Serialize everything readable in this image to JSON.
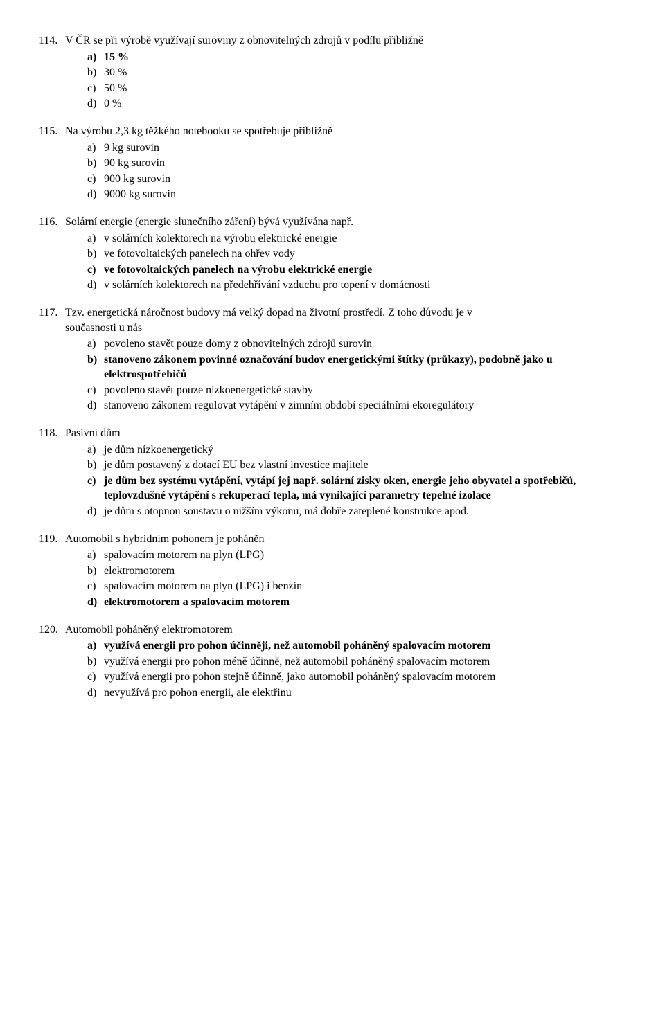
{
  "font_family": "Times New Roman",
  "base_fontsize_pt": 12,
  "text_color": "#000000",
  "background_color": "#ffffff",
  "questions": [
    {
      "number": "114.",
      "stem": "V ČR se při výrobě využívají suroviny z obnovitelných zdrojů v podílu přibližně",
      "extra_stem": "",
      "options": [
        {
          "letter": "a)",
          "text": "15 %",
          "bold": true
        },
        {
          "letter": "b)",
          "text": "30 %",
          "bold": false
        },
        {
          "letter": "c)",
          "text": "50 %",
          "bold": false
        },
        {
          "letter": "d)",
          "text": "0 %",
          "bold": false
        }
      ]
    },
    {
      "number": "115.",
      "stem": "Na výrobu 2,3 kg těžkého notebooku se spotřebuje přibližně",
      "extra_stem": "",
      "options": [
        {
          "letter": "a)",
          "text": "9 kg surovin",
          "bold": false
        },
        {
          "letter": "b)",
          "text": "90 kg surovin",
          "bold": false
        },
        {
          "letter": "c)",
          "text": "900 kg surovin",
          "bold": false
        },
        {
          "letter": "d)",
          "text": "9000 kg surovin",
          "bold": false
        }
      ]
    },
    {
      "number": "116.",
      "stem": "Solární energie (energie slunečního záření) bývá využívána např.",
      "extra_stem": "",
      "options": [
        {
          "letter": "a)",
          "text": "v solárních kolektorech na výrobu elektrické energie",
          "bold": false
        },
        {
          "letter": "b)",
          "text": "ve fotovoltaických panelech na ohřev vody",
          "bold": false
        },
        {
          "letter": "c)",
          "text": "ve fotovoltaických panelech na výrobu elektrické energie",
          "bold": true
        },
        {
          "letter": "d)",
          "text": "v solárních kolektorech na předehřívání vzduchu pro topení v domácnosti",
          "bold": false
        }
      ]
    },
    {
      "number": "117.",
      "stem": "Tzv. energetická náročnost budovy má velký dopad na životní prostředí. Z toho důvodu je v",
      "extra_stem": "současnosti u nás",
      "options": [
        {
          "letter": "a)",
          "text": "povoleno stavět pouze domy z obnovitelných zdrojů surovin",
          "bold": false
        },
        {
          "letter": "b)",
          "text": "stanoveno zákonem povinné označování budov energetickými štítky (průkazy), podobně jako u elektrospotřebičů",
          "bold": true
        },
        {
          "letter": "c)",
          "text": "povoleno stavět pouze nízkoenergetické stavby",
          "bold": false
        },
        {
          "letter": "d)",
          "text": "stanoveno zákonem regulovat vytápění v zimním období speciálními ekoregulátory",
          "bold": false
        }
      ]
    },
    {
      "number": "118.",
      "stem": "Pasivní dům",
      "extra_stem": "",
      "options": [
        {
          "letter": "a)",
          "text": "je dům nízkoenergetický",
          "bold": false
        },
        {
          "letter": "b)",
          "text": "je dům postavený z dotací EU bez vlastní investice majitele",
          "bold": false
        },
        {
          "letter": "c)",
          "text": "je dům bez systému vytápění, vytápí jej např. solární zisky oken, energie jeho obyvatel a spotřebičů, teplovzdušné vytápění s rekuperací tepla, má vynikající parametry tepelné izolace",
          "bold": true
        },
        {
          "letter": "d)",
          "text": "je dům s otopnou soustavu o nižším výkonu, má dobře zateplené konstrukce apod.",
          "bold": false
        }
      ]
    },
    {
      "number": "119.",
      "stem": "Automobil s hybridním pohonem je poháněn",
      "extra_stem": "",
      "options": [
        {
          "letter": "a)",
          "text": "spalovacím motorem na plyn (LPG)",
          "bold": false
        },
        {
          "letter": "b)",
          "text": "elektromotorem",
          "bold": false
        },
        {
          "letter": "c)",
          "text": "spalovacím motorem na plyn (LPG) i benzín",
          "bold": false
        },
        {
          "letter": "d)",
          "text": "elektromotorem a spalovacím motorem",
          "bold": true
        }
      ]
    },
    {
      "number": "120.",
      "stem": "Automobil poháněný elektromotorem",
      "extra_stem": "",
      "options": [
        {
          "letter": "a)",
          "text": "využívá energii pro pohon účinněji, než automobil poháněný spalovacím motorem",
          "bold": true
        },
        {
          "letter": "b)",
          "text": "využívá energii pro pohon méně účinně, než automobil poháněný spalovacím motorem",
          "bold": false
        },
        {
          "letter": "c)",
          "text": "využívá energii pro pohon stejně účinně, jako automobil poháněný spalovacím motorem",
          "bold": false
        },
        {
          "letter": "d)",
          "text": "nevyužívá pro pohon energii, ale elektřinu",
          "bold": false
        }
      ]
    }
  ]
}
